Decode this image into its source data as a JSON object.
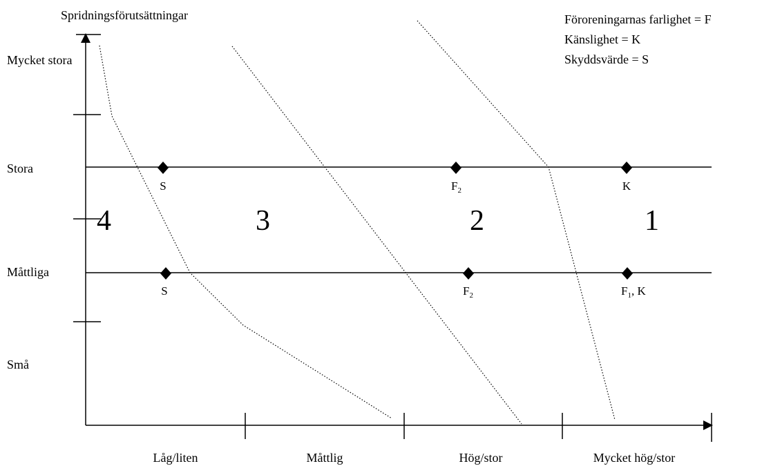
{
  "y_axis": {
    "title": "Spridningsförutsättningar",
    "levels": [
      "Mycket stora",
      "Stora",
      "Måttliga",
      "Små"
    ]
  },
  "x_axis": {
    "categories": [
      "Låg/liten",
      "Måttlig",
      "Hög/stor",
      "Mycket hög/stor"
    ]
  },
  "legend": [
    "Föroreningarnas farlighet = F",
    "Känslighet = K",
    "Skyddsvärde = S"
  ],
  "zones": [
    "4",
    "3",
    "2",
    "1"
  ],
  "rows": [
    {
      "level": "Stora",
      "points": [
        {
          "label": "S",
          "sub": ""
        },
        {
          "label": "F",
          "sub": "2"
        },
        {
          "label": "K",
          "sub": ""
        }
      ]
    },
    {
      "level": "Måttliga",
      "points": [
        {
          "label": "S",
          "sub": ""
        },
        {
          "label": "F",
          "sub": "2"
        },
        {
          "label": "F",
          "sub": "1",
          "suffix": ", K"
        }
      ]
    }
  ]
}
